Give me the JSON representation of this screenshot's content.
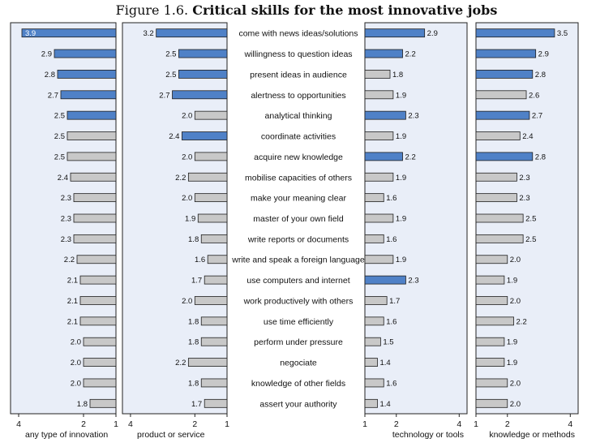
{
  "title": {
    "prefix": "Figure 1.6. ",
    "main": "Critical skills for the most innovative jobs"
  },
  "chart_data": {
    "type": "bar",
    "orientation": "horizontal",
    "title": "Figure 1.6. Critical skills for the most innovative jobs",
    "categories": [
      "come with news ideas/solutions",
      "willingness to question ideas",
      "present ideas in audience",
      "alertness to opportunities",
      "analytical thinking",
      "coordinate activities",
      "acquire new knowledge",
      "mobilise capacities of others",
      "make your meaning clear",
      "master of your own field",
      "write reports or documents",
      "write and speak a foreign language",
      "use computers and internet",
      "work productively with others",
      "use time efficiently",
      "perform under pressure",
      "negociate",
      "knowledge of other fields",
      "assert your authority"
    ],
    "panels": [
      {
        "name": "any type of innovation",
        "direction": "reversed",
        "xlim": [
          1,
          4.25
        ],
        "ticks": [
          4,
          2,
          1
        ],
        "tick_labels": [
          "4",
          "2",
          "1"
        ],
        "values": [
          3.9,
          2.9,
          2.8,
          2.7,
          2.5,
          2.5,
          2.5,
          2.4,
          2.3,
          2.3,
          2.3,
          2.2,
          2.1,
          2.1,
          2.1,
          2.0,
          2.0,
          2.0,
          1.8
        ],
        "value_labels": [
          "3.9",
          "2.9",
          "2.8",
          "2.7",
          "2.5",
          "2.5",
          "2.5",
          "2.4",
          "2.3",
          "2.3",
          "2.3",
          "2.2",
          "2.1",
          "2.1",
          "2.1",
          "2.0",
          "2.0",
          "2.0",
          "1.8"
        ],
        "highlighted": [
          true,
          true,
          true,
          true,
          true,
          false,
          false,
          false,
          false,
          false,
          false,
          false,
          false,
          false,
          false,
          false,
          false,
          false,
          false
        ]
      },
      {
        "name": "product or service",
        "direction": "reversed",
        "xlim": [
          1,
          4.25
        ],
        "ticks": [
          4,
          2,
          1
        ],
        "tick_labels": [
          "4",
          "2",
          "1"
        ],
        "values": [
          3.2,
          2.5,
          2.5,
          2.7,
          2.0,
          2.4,
          2.0,
          2.2,
          2.0,
          1.9,
          1.8,
          1.6,
          1.7,
          2.0,
          1.8,
          1.8,
          2.2,
          1.8,
          1.7
        ],
        "value_labels": [
          "3.2",
          "2.5",
          "2.5",
          "2.7",
          "2.0",
          "2.4",
          "2.0",
          "2.2",
          "2.0",
          "1.9",
          "1.8",
          "1.6",
          "1.7",
          "2.0",
          "1.8",
          "1.8",
          "2.2",
          "1.8",
          "1.7"
        ],
        "highlighted": [
          true,
          true,
          true,
          true,
          false,
          true,
          false,
          false,
          false,
          false,
          false,
          false,
          false,
          false,
          false,
          false,
          false,
          false,
          false
        ]
      },
      {
        "name": "technology or tools",
        "direction": "normal",
        "xlim": [
          1,
          4.25
        ],
        "ticks": [
          1,
          2,
          4
        ],
        "tick_labels": [
          "1",
          "2",
          "4"
        ],
        "values": [
          2.9,
          2.2,
          1.8,
          1.9,
          2.3,
          1.9,
          2.2,
          1.9,
          1.6,
          1.9,
          1.6,
          1.9,
          2.3,
          1.7,
          1.6,
          1.5,
          1.4,
          1.6,
          1.4
        ],
        "value_labels": [
          "2.9",
          "2.2",
          "1.8",
          "1.9",
          "2.3",
          "1.9",
          "2.2",
          "1.9",
          "1.6",
          "1.9",
          "1.6",
          "1.9",
          "2.3",
          "1.7",
          "1.6",
          "1.5",
          "1.4",
          "1.6",
          "1.4"
        ],
        "highlighted": [
          true,
          true,
          false,
          false,
          true,
          false,
          true,
          false,
          false,
          false,
          false,
          false,
          true,
          false,
          false,
          false,
          false,
          false,
          false
        ]
      },
      {
        "name": "knowledge or methods",
        "direction": "normal",
        "xlim": [
          1,
          4.25
        ],
        "ticks": [
          1,
          2,
          4
        ],
        "tick_labels": [
          "1",
          "2",
          "4"
        ],
        "values": [
          3.5,
          2.9,
          2.8,
          2.6,
          2.7,
          2.4,
          2.8,
          2.3,
          2.3,
          2.5,
          2.5,
          2.0,
          1.9,
          2.0,
          2.2,
          1.9,
          1.9,
          2.0,
          2.0
        ],
        "value_labels": [
          "3.5",
          "2.9",
          "2.8",
          "2.6",
          "2.7",
          "2.4",
          "2.8",
          "2.3",
          "2.3",
          "2.5",
          "2.5",
          "2.0",
          "1.9",
          "2.0",
          "2.2",
          "1.9",
          "1.9",
          "2.0",
          "2.0"
        ],
        "highlighted": [
          true,
          true,
          true,
          false,
          true,
          false,
          true,
          false,
          false,
          false,
          false,
          false,
          false,
          false,
          false,
          false,
          false,
          false,
          false
        ]
      }
    ],
    "colors": {
      "highlight": "#4f81c7",
      "other": "#c8c8c8",
      "panel_background": "#e9eef8"
    },
    "grid": false,
    "legend": "none"
  }
}
